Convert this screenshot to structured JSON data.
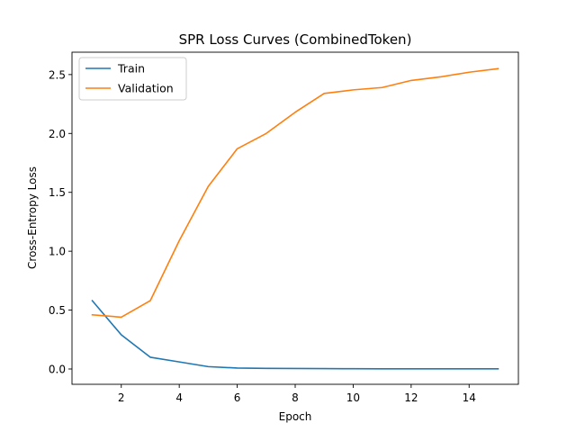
{
  "chart_data": {
    "type": "line",
    "title": "SPR Loss Curves (CombinedToken)",
    "xlabel": "Epoch",
    "ylabel": "Cross-Entropy Loss",
    "x": [
      1,
      2,
      3,
      4,
      5,
      6,
      7,
      8,
      9,
      10,
      11,
      12,
      13,
      14,
      15
    ],
    "xlim": [
      0.3,
      15.7
    ],
    "ylim": [
      -0.13,
      2.69
    ],
    "xticks": [
      2,
      4,
      6,
      8,
      10,
      12,
      14
    ],
    "yticks": [
      0.0,
      0.5,
      1.0,
      1.5,
      2.0,
      2.5
    ],
    "grid": false,
    "legend_position": "top-left",
    "series": [
      {
        "name": "Train",
        "color": "#1f77b4",
        "values": [
          0.58,
          0.29,
          0.1,
          0.06,
          0.02,
          0.008,
          0.005,
          0.004,
          0.003,
          0.002,
          0.001,
          0.001,
          0.001,
          0.001,
          0.001
        ]
      },
      {
        "name": "Validation",
        "color": "#ff7f0e",
        "values": [
          0.46,
          0.44,
          0.58,
          1.09,
          1.55,
          1.87,
          2.0,
          2.18,
          2.34,
          2.37,
          2.39,
          2.45,
          2.48,
          2.52,
          2.55
        ]
      }
    ]
  }
}
